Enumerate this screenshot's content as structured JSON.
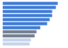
{
  "chart_data": {
    "type": "bar",
    "orientation": "horizontal",
    "categories": [
      null,
      null,
      null,
      null,
      null,
      null,
      null,
      null,
      null,
      null,
      null
    ],
    "values": [
      88,
      85,
      79,
      79,
      75,
      71,
      60,
      54,
      51,
      45,
      43
    ],
    "colors": [
      "#3a78d6",
      "#3a78d6",
      "#3a78d6",
      "#3a78d6",
      "#3a78d6",
      "#3a78d6",
      "#3a78d6",
      "#6f7c8f",
      "#6f7c8f",
      "#c5d3ea",
      "#c5d3ea"
    ],
    "xlim": [
      0,
      100
    ],
    "grid": false,
    "tick_labels": false
  }
}
